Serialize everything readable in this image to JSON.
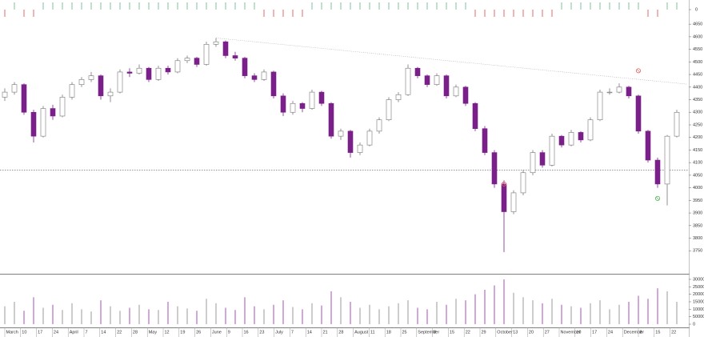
{
  "chart_data": {
    "type": "candlestick",
    "ylim": [
      3665,
      4730
    ],
    "yticks": [
      3750,
      3800,
      3850,
      3900,
      3950,
      4000,
      4050,
      4100,
      4150,
      4200,
      4250,
      4300,
      4350,
      4400,
      4450,
      4500,
      4550,
      4600,
      4650
    ],
    "vlim": [
      0,
      332000
    ],
    "vticks": [
      0,
      50000,
      100000,
      150000,
      200000,
      250000,
      300000
    ],
    "signal_ticks": [
      0
    ],
    "up_color": "#ffffff",
    "down_color": "#7b1f8a",
    "signal_up_color": "#7cc49a",
    "signal_down_color": "#e06a6a",
    "candles": [
      [
        4360,
        4395,
        4345,
        4380
      ],
      [
        4380,
        4420,
        4370,
        4410
      ],
      [
        4410,
        4415,
        4290,
        4300
      ],
      [
        4300,
        4310,
        4180,
        4205
      ],
      [
        4205,
        4325,
        4200,
        4315
      ],
      [
        4315,
        4330,
        4270,
        4285
      ],
      [
        4285,
        4370,
        4280,
        4360
      ],
      [
        4360,
        4420,
        4350,
        4410
      ],
      [
        4410,
        4440,
        4400,
        4430
      ],
      [
        4430,
        4460,
        4420,
        4445
      ],
      [
        4445,
        4450,
        4350,
        4365
      ],
      [
        4365,
        4395,
        4340,
        4380
      ],
      [
        4380,
        4470,
        4375,
        4460
      ],
      [
        4460,
        4475,
        4440,
        4455
      ],
      [
        4455,
        4490,
        4450,
        4475
      ],
      [
        4475,
        4480,
        4420,
        4430
      ],
      [
        4430,
        4485,
        4425,
        4475
      ],
      [
        4475,
        4485,
        4450,
        4460
      ],
      [
        4460,
        4515,
        4455,
        4505
      ],
      [
        4505,
        4525,
        4495,
        4515
      ],
      [
        4515,
        4520,
        4480,
        4490
      ],
      [
        4490,
        4580,
        4485,
        4570
      ],
      [
        4570,
        4595,
        4560,
        4580
      ],
      [
        4580,
        4585,
        4515,
        4525
      ],
      [
        4525,
        4540,
        4505,
        4515
      ],
      [
        4515,
        4520,
        4435,
        4445
      ],
      [
        4445,
        4455,
        4420,
        4430
      ],
      [
        4430,
        4470,
        4425,
        4460
      ],
      [
        4460,
        4465,
        4355,
        4365
      ],
      [
        4365,
        4375,
        4285,
        4300
      ],
      [
        4300,
        4345,
        4290,
        4335
      ],
      [
        4335,
        4340,
        4300,
        4315
      ],
      [
        4315,
        4390,
        4310,
        4380
      ],
      [
        4380,
        4385,
        4325,
        4335
      ],
      [
        4335,
        4340,
        4195,
        4205
      ],
      [
        4205,
        4235,
        4190,
        4225
      ],
      [
        4225,
        4230,
        4120,
        4140
      ],
      [
        4140,
        4180,
        4130,
        4170
      ],
      [
        4170,
        4235,
        4165,
        4225
      ],
      [
        4225,
        4280,
        4215,
        4270
      ],
      [
        4270,
        4360,
        4265,
        4350
      ],
      [
        4350,
        4380,
        4340,
        4370
      ],
      [
        4370,
        4490,
        4365,
        4475
      ],
      [
        4475,
        4480,
        4435,
        4445
      ],
      [
        4445,
        4450,
        4400,
        4410
      ],
      [
        4410,
        4455,
        4405,
        4445
      ],
      [
        4445,
        4450,
        4355,
        4365
      ],
      [
        4365,
        4410,
        4360,
        4400
      ],
      [
        4400,
        4405,
        4325,
        4335
      ],
      [
        4335,
        4340,
        4225,
        4235
      ],
      [
        4235,
        4245,
        4130,
        4140
      ],
      [
        4140,
        4150,
        4000,
        4015
      ],
      [
        4015,
        4030,
        3745,
        3905
      ],
      [
        3905,
        3990,
        3895,
        3980
      ],
      [
        3980,
        4070,
        3970,
        4060
      ],
      [
        4060,
        4150,
        4050,
        4140
      ],
      [
        4140,
        4150,
        4080,
        4090
      ],
      [
        4090,
        4215,
        4085,
        4205
      ],
      [
        4205,
        4210,
        4160,
        4170
      ],
      [
        4170,
        4230,
        4165,
        4220
      ],
      [
        4220,
        4225,
        4180,
        4190
      ],
      [
        4190,
        4280,
        4185,
        4270
      ],
      [
        4270,
        4390,
        4265,
        4380
      ],
      [
        4380,
        4395,
        4370,
        4380
      ],
      [
        4380,
        4415,
        4375,
        4400
      ],
      [
        4400,
        4405,
        4355,
        4365
      ],
      [
        4365,
        4370,
        4215,
        4225
      ],
      [
        4225,
        4230,
        4100,
        4110
      ],
      [
        4110,
        4120,
        4000,
        4015
      ],
      [
        4015,
        4210,
        3930,
        4205
      ],
      [
        4205,
        4310,
        4200,
        4300
      ]
    ],
    "volume": [
      120000,
      150000,
      90000,
      180000,
      110000,
      130000,
      95000,
      140000,
      100000,
      85000,
      160000,
      120000,
      90000,
      110000,
      130000,
      100000,
      95000,
      150000,
      120000,
      105000,
      90000,
      170000,
      140000,
      110000,
      95000,
      180000,
      120000,
      100000,
      130000,
      160000,
      115000,
      100000,
      140000,
      125000,
      220000,
      180000,
      150000,
      110000,
      130000,
      100000,
      120000,
      140000,
      160000,
      110000,
      100000,
      150000,
      130000,
      170000,
      160000,
      200000,
      230000,
      260000,
      300000,
      210000,
      180000,
      160000,
      140000,
      170000,
      130000,
      120000,
      110000,
      140000,
      160000,
      100000,
      130000,
      150000,
      190000,
      170000,
      240000,
      220000,
      150000
    ],
    "signals": [
      -1,
      1,
      -1,
      -1,
      1,
      1,
      1,
      1,
      1,
      1,
      1,
      1,
      1,
      1,
      1,
      1,
      1,
      1,
      1,
      1,
      1,
      1,
      1,
      1,
      1,
      1,
      1,
      -1,
      -1,
      -1,
      -1,
      -1,
      1,
      1,
      1,
      1,
      1,
      1,
      1,
      1,
      1,
      1,
      1,
      1,
      1,
      1,
      1,
      1,
      1,
      -1,
      -1,
      -1,
      -1,
      -1,
      -1,
      -1,
      -1,
      -1,
      1,
      1,
      1,
      1,
      1,
      1,
      1,
      1,
      1,
      -1,
      -1,
      1,
      1
    ],
    "support_level": 4071,
    "trendline": [
      {
        "x": 22,
        "value": 4595
      },
      {
        "x": 71,
        "value": 4412
      }
    ],
    "markers": [
      {
        "x": 52,
        "value": 4015,
        "color": "#e06060"
      },
      {
        "x": 66,
        "value": 4465,
        "color": "#e06060"
      },
      {
        "x": 68,
        "value": 3958,
        "color": "#4caf50"
      }
    ],
    "xticks": [
      {
        "value": 0,
        "label": "March"
      },
      {
        "value": 1.65,
        "label": "10"
      },
      {
        "value": 3.3,
        "label": "17"
      },
      {
        "value": 4.95,
        "label": "24"
      },
      {
        "value": 6.6,
        "label": "April"
      },
      {
        "value": 8.25,
        "label": "7"
      },
      {
        "value": 9.9,
        "label": "14"
      },
      {
        "value": 11.55,
        "label": "22"
      },
      {
        "value": 13.2,
        "label": "28"
      },
      {
        "value": 14.85,
        "label": "May"
      },
      {
        "value": 16.5,
        "label": "12"
      },
      {
        "value": 18.15,
        "label": "19"
      },
      {
        "value": 19.8,
        "label": "26"
      },
      {
        "value": 21.45,
        "label": "June"
      },
      {
        "value": 23.1,
        "label": "9"
      },
      {
        "value": 24.75,
        "label": "16"
      },
      {
        "value": 26.4,
        "label": "23"
      },
      {
        "value": 28.05,
        "label": "July"
      },
      {
        "value": 29.7,
        "label": "7"
      },
      {
        "value": 31.35,
        "label": "14"
      },
      {
        "value": 33,
        "label": "21"
      },
      {
        "value": 34.65,
        "label": "28"
      },
      {
        "value": 36.3,
        "label": "August"
      },
      {
        "value": 37.95,
        "label": "11"
      },
      {
        "value": 39.6,
        "label": "18"
      },
      {
        "value": 41.25,
        "label": "25"
      },
      {
        "value": 42.9,
        "label": "September"
      },
      {
        "value": 44.55,
        "label": "8"
      },
      {
        "value": 46.2,
        "label": "15"
      },
      {
        "value": 47.85,
        "label": "22"
      },
      {
        "value": 49.5,
        "label": "29"
      },
      {
        "value": 51.15,
        "label": "October"
      },
      {
        "value": 52.8,
        "label": "13"
      },
      {
        "value": 54.45,
        "label": "20"
      },
      {
        "value": 56.1,
        "label": "27"
      },
      {
        "value": 57.75,
        "label": "November"
      },
      {
        "value": 59.4,
        "label": "10"
      },
      {
        "value": 61.05,
        "label": "17"
      },
      {
        "value": 62.7,
        "label": "24"
      },
      {
        "value": 64.35,
        "label": "December"
      },
      {
        "value": 66,
        "label": "8"
      },
      {
        "value": 67.65,
        "label": "15"
      },
      {
        "value": 69.3,
        "label": "22"
      }
    ]
  }
}
